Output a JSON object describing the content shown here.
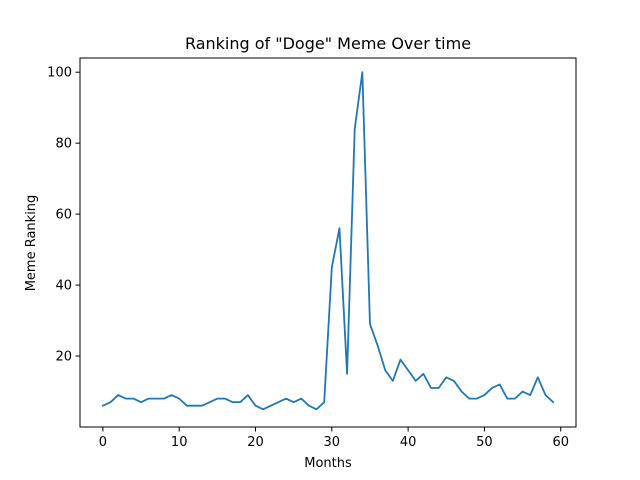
{
  "chart_data": {
    "type": "line",
    "title": "Ranking of \"Doge\" Meme Over time",
    "xlabel": "Months",
    "ylabel": "Meme Ranking",
    "xlim": [
      -3,
      62
    ],
    "ylim": [
      0,
      104
    ],
    "xticks": [
      0,
      10,
      20,
      30,
      40,
      50,
      60
    ],
    "yticks": [
      20,
      40,
      60,
      80,
      100
    ],
    "grid": false,
    "line_color": "#1f77b4",
    "series": [
      {
        "x": [
          0,
          1,
          2,
          3,
          4,
          5,
          6,
          7,
          8,
          9,
          10,
          11,
          12,
          13,
          14,
          15,
          16,
          17,
          18,
          19,
          20,
          21,
          22,
          23,
          24,
          25,
          26,
          27,
          28,
          29,
          30,
          31,
          32,
          33,
          34,
          35,
          36,
          37,
          38,
          39,
          40,
          41,
          42,
          43,
          44,
          45,
          46,
          47,
          48,
          49,
          50,
          51,
          52,
          53,
          54,
          55,
          56,
          57,
          58,
          59
        ],
        "values": [
          6,
          7,
          9,
          8,
          8,
          7,
          8,
          8,
          8,
          9,
          8,
          6,
          6,
          6,
          7,
          8,
          8,
          7,
          7,
          9,
          6,
          5,
          6,
          7,
          8,
          7,
          8,
          6,
          5,
          7,
          45,
          56,
          15,
          84,
          100,
          29,
          23,
          16,
          13,
          19,
          16,
          13,
          15,
          11,
          11,
          14,
          13,
          10,
          8,
          8,
          9,
          11,
          12,
          8,
          8,
          10,
          9,
          14,
          9,
          7
        ]
      }
    ]
  }
}
